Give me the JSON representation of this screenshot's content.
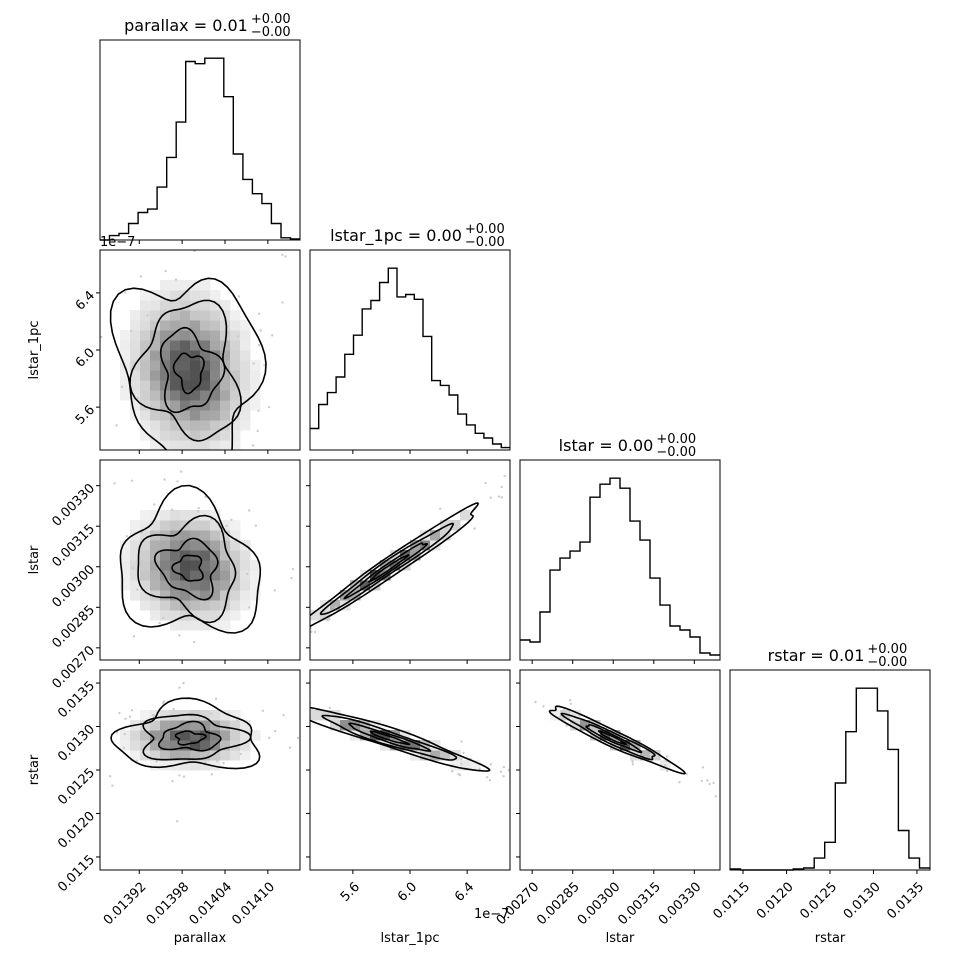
{
  "chart_data": {
    "type": "corner",
    "parameters": [
      {
        "name": "parallax",
        "axis_label": "parallax",
        "title": "parallax = 0.01",
        "title_plus": "+0.00",
        "title_minus": "−0.00",
        "range": [
          0.013865,
          0.014145
        ],
        "ticks": [
          0.01392,
          0.01398,
          0.01404,
          0.0141
        ],
        "tick_labels": [
          "0.01392",
          "0.01398",
          "0.01404",
          "0.01410"
        ],
        "offset_text": "",
        "hist": [
          0,
          4,
          6,
          15,
          25,
          28,
          48,
          75,
          107,
          162,
          160,
          165,
          165,
          130,
          78,
          55,
          42,
          33,
          15,
          2,
          1
        ]
      },
      {
        "name": "lstar_1pc",
        "axis_label": "lstar_1pc",
        "title": "lstar_1pc = 0.00",
        "title_plus": "+0.00",
        "title_minus": "−0.00",
        "range": [
          5.3e-07,
          6.7e-07
        ],
        "ticks": [
          5.6e-07,
          6e-07,
          6.4e-07
        ],
        "tick_labels": [
          "5.6",
          "6.0",
          "6.4"
        ],
        "offset_text": "1e−7",
        "hist": [
          18,
          38,
          48,
          61,
          80,
          96,
          118,
          125,
          140,
          152,
          128,
          130,
          126,
          95,
          58,
          54,
          46,
          30,
          21,
          14,
          10,
          5,
          2
        ]
      },
      {
        "name": "lstar",
        "axis_label": "lstar",
        "title": "lstar = 0.00",
        "title_plus": "+0.00",
        "title_minus": "−0.00",
        "range": [
          0.002655,
          0.003395
        ],
        "ticks": [
          0.0027,
          0.00285,
          0.003,
          0.00315,
          0.0033
        ],
        "tick_labels": [
          "0.00270",
          "0.00285",
          "0.00300",
          "0.00315",
          "0.00330"
        ],
        "offset_text": "",
        "hist": [
          20,
          18,
          48,
          90,
          102,
          109,
          118,
          163,
          176,
          182,
          172,
          139,
          120,
          82,
          55,
          34,
          30,
          23,
          7,
          5
        ]
      },
      {
        "name": "rstar",
        "axis_label": "rstar",
        "title": "rstar = 0.01",
        "title_plus": "+0.00",
        "title_minus": "−0.00",
        "range": [
          0.01135,
          0.01365
        ],
        "ticks": [
          0.0115,
          0.012,
          0.0125,
          0.013,
          0.0135
        ],
        "tick_labels": [
          "0.0115",
          "0.0120",
          "0.0125",
          "0.0130",
          "0.0135"
        ],
        "offset_text": "",
        "hist": [
          1,
          0,
          0,
          0,
          0,
          0,
          1,
          2,
          12,
          28,
          88,
          140,
          184,
          184,
          161,
          122,
          40,
          12,
          2
        ]
      }
    ],
    "pairs": [
      {
        "row": 1,
        "col": 0,
        "corr": -0.1,
        "mean": [
          0.01399,
          5.85e-07
        ],
        "sd": [
          4.25e-05,
          2.9e-08
        ]
      },
      {
        "row": 2,
        "col": 0,
        "corr": -0.1,
        "mean": [
          0.01399,
          0.002995
        ],
        "sd": [
          4.25e-05,
          0.000105
        ]
      },
      {
        "row": 2,
        "col": 1,
        "corr": 0.985,
        "mean": [
          5.85e-07,
          0.002995
        ],
        "sd": [
          2.9e-08,
          0.000105
        ]
      },
      {
        "row": 3,
        "col": 0,
        "corr": 0.0,
        "mean": [
          0.01399,
          0.01287
        ],
        "sd": [
          4.25e-05,
          0.00016
        ]
      },
      {
        "row": 3,
        "col": 1,
        "corr": -0.95,
        "mean": [
          5.85e-07,
          0.01287
        ],
        "sd": [
          2.9e-08,
          0.00016
        ]
      },
      {
        "row": 3,
        "col": 2,
        "corr": -0.96,
        "mean": [
          0.002995,
          0.01287
        ],
        "sd": [
          0.000105,
          0.00016
        ]
      }
    ]
  }
}
